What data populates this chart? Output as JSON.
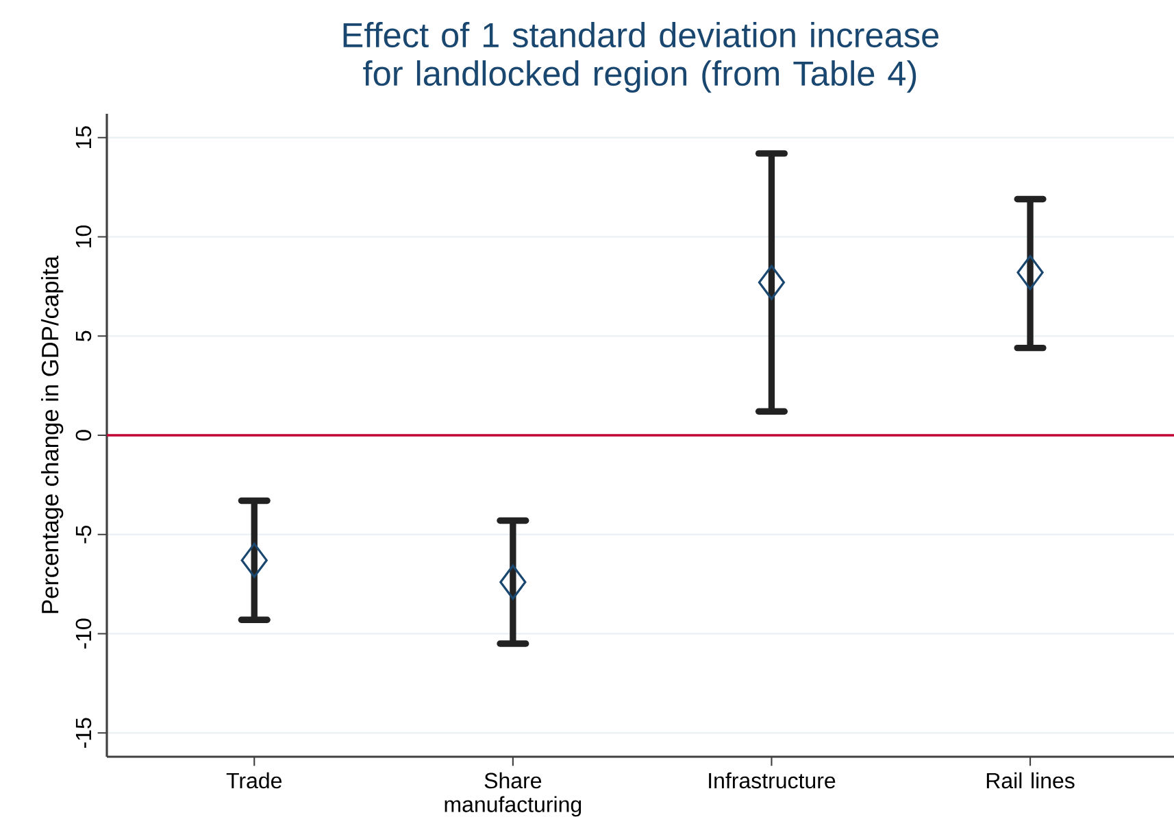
{
  "chart_data": {
    "type": "scatter",
    "title": "Effect of 1 standard deviation increase for landlocked region (from Table 4)",
    "ylabel": "Percentage change in GDP/capita",
    "categories": [
      "Trade",
      "Share manufacturing",
      "Infrastructure",
      "Rail lines"
    ],
    "values": [
      -6.3,
      -7.4,
      7.7,
      8.2
    ],
    "errors": [
      [
        -9.3,
        -3.3
      ],
      [
        -10.5,
        -4.3
      ],
      [
        1.2,
        14.2
      ],
      [
        4.4,
        11.9
      ]
    ],
    "color": "#1a476f",
    "marker": "diamond",
    "ylim": [
      -16.2,
      16.2
    ],
    "yticks": [
      -15,
      -10,
      -5,
      0,
      5,
      10,
      15
    ],
    "grid": "y",
    "ref_lines": [
      {
        "axis": "y",
        "value": 0,
        "color": "#c10534"
      }
    ]
  }
}
